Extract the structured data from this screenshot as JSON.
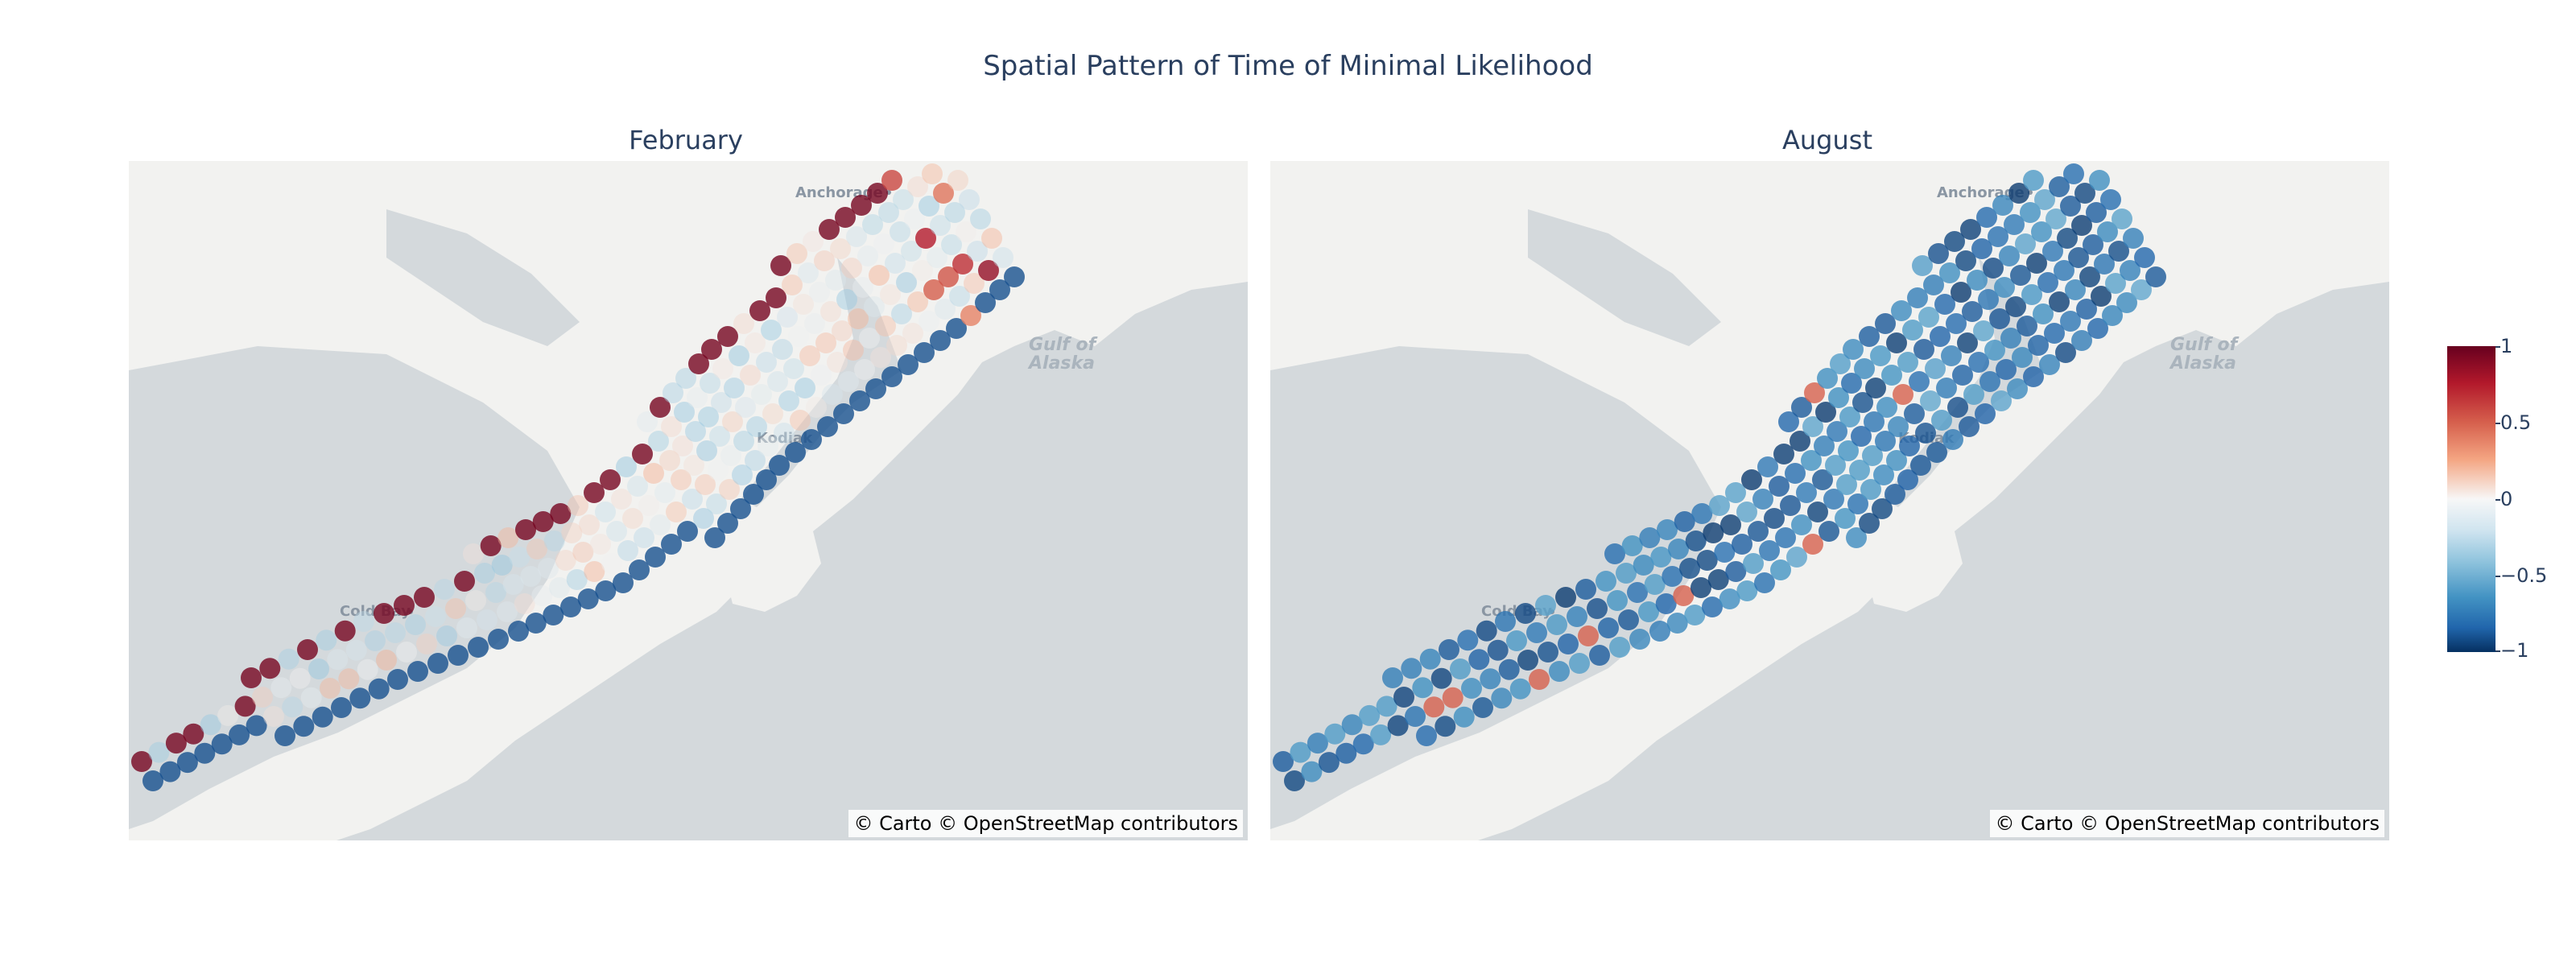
{
  "title": "Spatial Pattern of Time of Minimal Likelihood",
  "panels": [
    {
      "subtitle": "February",
      "attribution": "© Carto © OpenStreetMap contributors"
    },
    {
      "subtitle": "August",
      "attribution": "© Carto © OpenStreetMap contributors"
    }
  ],
  "map_labels": {
    "anchorage": "Anchorage",
    "gulf_line1": "Gulf of",
    "gulf_line2": "Alaska",
    "kodiak": "Kodiak",
    "cold_bay": "Cold Bay"
  },
  "colorbar": {
    "colorscale": "RdBu_r",
    "range": [
      -1,
      1
    ],
    "ticks": [
      "1",
      "0.5",
      "0",
      "−0.5",
      "−1"
    ]
  },
  "colors": {
    "land": "#f2f2f0",
    "water": "#d4d9dc",
    "text": "#2a3f5f"
  }
}
